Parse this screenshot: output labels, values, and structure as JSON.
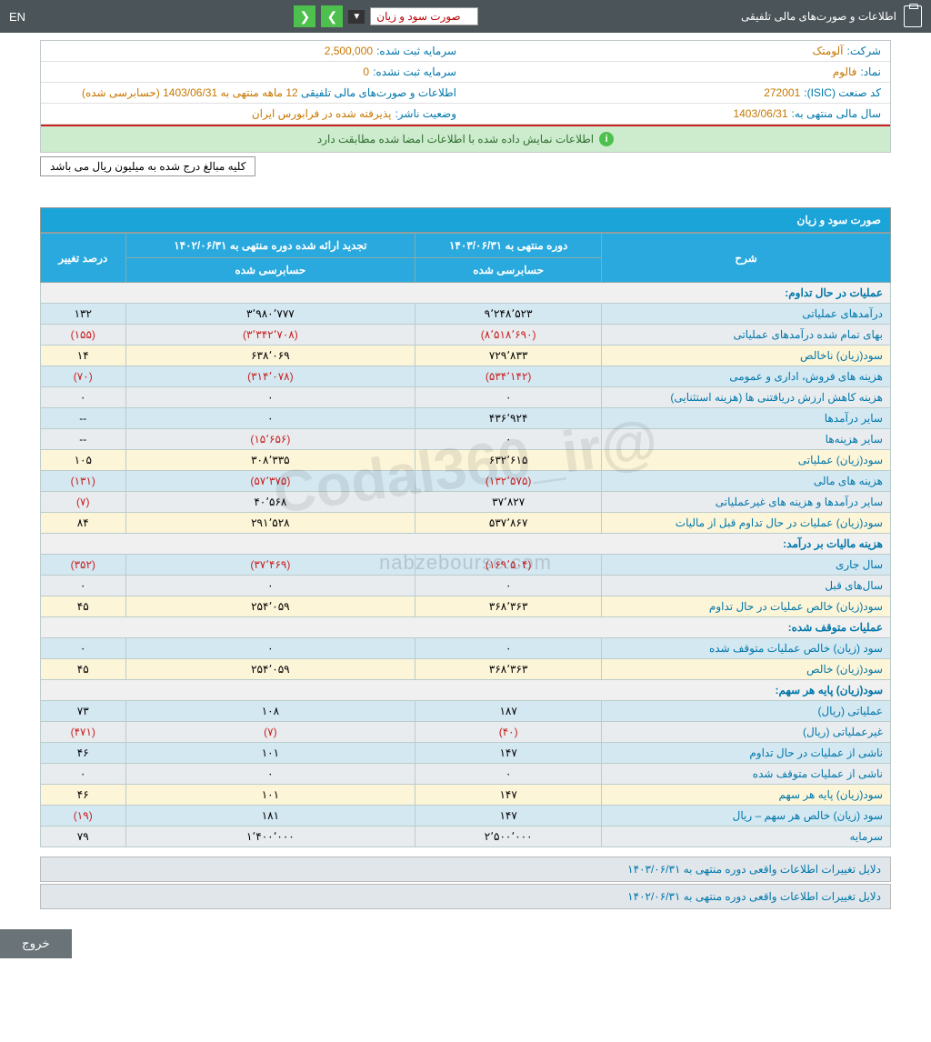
{
  "topbar": {
    "title": "اطلاعات و صورت‌های مالی تلفیقی",
    "dropdown_selected": "صورت سود و زیان",
    "lang": "EN"
  },
  "info": {
    "company_label": "شرکت:",
    "company_val": "آلومتک",
    "symbol_label": "نماد:",
    "symbol_val": "فالوم",
    "isic_label": "کد صنعت (ISIC):",
    "isic_val": "272001",
    "fiscal_label": "سال مالی منتهی به:",
    "fiscal_val": "1403/06/31",
    "capital_reg_label": "سرمایه ثبت شده:",
    "capital_reg_val": "2,500,000",
    "capital_unreg_label": "سرمایه ثبت نشده:",
    "capital_unreg_val": "0",
    "statements_label": "اطلاعات و صورت‌های مالی تلفیقی",
    "statements_val": "12 ماهه منتهی به 1403/06/31 (حسابرسی شده)",
    "status_label": "وضعیت ناشر:",
    "status_val": "پذیرفته شده در فرابورس ایران"
  },
  "banner": "اطلاعات نمایش داده شده با اطلاعات امضا شده مطابقت دارد",
  "note": "کلیه مبالغ درج شده به میلیون ریال می باشد",
  "section_title": "صورت سود و زیان",
  "headers": {
    "desc": "شرح",
    "period1": "دوره منتهی به ۱۴۰۳/۰۶/۳۱",
    "period2": "تجدید ارائه شده دوره منتهی به ۱۴۰۲/۰۶/۳۱",
    "change": "درصد تغییر",
    "audited": "حسابرسی شده"
  },
  "rows": [
    {
      "type": "header",
      "label": "عملیات در حال تداوم:"
    },
    {
      "type": "blue",
      "label": "درآمدهای عملیاتی",
      "v1": "۹٬۲۴۸٬۵۲۳",
      "v2": "۳٬۹۸۰٬۷۷۷",
      "chg": "۱۳۲"
    },
    {
      "type": "grey",
      "label": "بهای تمام شده درآمدهای عملیاتی",
      "v1": "(۸٬۵۱۸٬۶۹۰)",
      "v1neg": true,
      "v2": "(۳٬۳۴۲٬۷۰۸)",
      "v2neg": true,
      "chg": "(۱۵۵)",
      "chgneg": true
    },
    {
      "type": "yellow",
      "label": "سود(زیان) ناخالص",
      "v1": "۷۲۹٬۸۳۳",
      "v2": "۶۳۸٬۰۶۹",
      "chg": "۱۴"
    },
    {
      "type": "blue",
      "label": "هزینه های فروش، اداری و عمومی",
      "v1": "(۵۳۴٬۱۴۲)",
      "v1neg": true,
      "v2": "(۳۱۴٬۰۷۸)",
      "v2neg": true,
      "chg": "(۷۰)",
      "chgneg": true
    },
    {
      "type": "grey",
      "label": "هزینه کاهش ارزش دریافتنی ها (هزینه استثنایی)",
      "v1": "۰",
      "v2": "۰",
      "chg": "۰"
    },
    {
      "type": "blue",
      "label": "سایر درآمدها",
      "v1": "۴۳۶٬۹۲۴",
      "v2": "۰",
      "chg": "--"
    },
    {
      "type": "grey",
      "label": "سایر هزینه‌ها",
      "v1": "۰",
      "v2": "(۱۵٬۶۵۶)",
      "v2neg": true,
      "chg": "--"
    },
    {
      "type": "yellow",
      "label": "سود(زیان) عملیاتی",
      "v1": "۶۳۲٬۶۱۵",
      "v2": "۳۰۸٬۳۳۵",
      "chg": "۱۰۵"
    },
    {
      "type": "blue",
      "label": "هزینه های مالی",
      "v1": "(۱۳۲٬۵۷۵)",
      "v1neg": true,
      "v2": "(۵۷٬۳۷۵)",
      "v2neg": true,
      "chg": "(۱۳۱)",
      "chgneg": true
    },
    {
      "type": "grey",
      "label": "سایر درآمدها و هزینه های غیرعملیاتی",
      "v1": "۳۷٬۸۲۷",
      "v2": "۴۰٬۵۶۸",
      "chg": "(۷)",
      "chgneg": true
    },
    {
      "type": "yellow",
      "label": "سود(زیان) عملیات در حال تداوم قبل از مالیات",
      "v1": "۵۳۷٬۸۶۷",
      "v2": "۲۹۱٬۵۲۸",
      "chg": "۸۴"
    },
    {
      "type": "header",
      "label": "هزینه مالیات بر درآمد:"
    },
    {
      "type": "blue",
      "label": "سال جاری",
      "v1": "(۱۶۹٬۵۰۴)",
      "v1neg": true,
      "v2": "(۳۷٬۴۶۹)",
      "v2neg": true,
      "chg": "(۳۵۲)",
      "chgneg": true
    },
    {
      "type": "grey",
      "label": "سال‌های قبل",
      "v1": "۰",
      "v2": "۰",
      "chg": "۰"
    },
    {
      "type": "yellow",
      "label": "سود(زیان) خالص عملیات در حال تداوم",
      "v1": "۳۶۸٬۳۶۳",
      "v2": "۲۵۴٬۰۵۹",
      "chg": "۴۵"
    },
    {
      "type": "header",
      "label": "عملیات متوقف شده:"
    },
    {
      "type": "blue",
      "label": "سود (زیان) خالص عملیات متوقف شده",
      "v1": "۰",
      "v2": "۰",
      "chg": "۰"
    },
    {
      "type": "yellow",
      "label": "سود(زیان) خالص",
      "v1": "۳۶۸٬۳۶۳",
      "v2": "۲۵۴٬۰۵۹",
      "chg": "۴۵"
    },
    {
      "type": "header",
      "label": "سود(زیان) پایه هر سهم:"
    },
    {
      "type": "blue",
      "label": "عملیاتی (ریال)",
      "v1": "۱۸۷",
      "v2": "۱۰۸",
      "chg": "۷۳"
    },
    {
      "type": "grey",
      "label": "غیرعملیاتی (ریال)",
      "v1": "(۴۰)",
      "v1neg": true,
      "v2": "(۷)",
      "v2neg": true,
      "chg": "(۴۷۱)",
      "chgneg": true
    },
    {
      "type": "blue",
      "label": "ناشی از عملیات در حال تداوم",
      "v1": "۱۴۷",
      "v2": "۱۰۱",
      "chg": "۴۶"
    },
    {
      "type": "grey",
      "label": "ناشی از عملیات متوقف شده",
      "v1": "۰",
      "v2": "۰",
      "chg": "۰"
    },
    {
      "type": "yellow",
      "label": "سود(زیان) پایه هر سهم",
      "v1": "۱۴۷",
      "v2": "۱۰۱",
      "chg": "۴۶"
    },
    {
      "type": "blue",
      "label": "سود (زیان) خالص هر سهم – ریال",
      "v1": "۱۴۷",
      "v2": "۱۸۱",
      "chg": "(۱۹)",
      "chgneg": true
    },
    {
      "type": "grey",
      "label": "سرمایه",
      "v1": "۲٬۵۰۰٬۰۰۰",
      "v2": "۱٬۴۰۰٬۰۰۰",
      "chg": "۷۹"
    }
  ],
  "footer1": "دلایل تغییرات اطلاعات واقعی دوره منتهی به ۱۴۰۳/۰۶/۳۱",
  "footer2": "دلایل تغییرات اطلاعات واقعی دوره منتهی به ۱۴۰۲/۰۶/۳۱",
  "exit": "خروج",
  "watermark1": "@Codal360_ir",
  "watermark2": "nabzebourse.com"
}
